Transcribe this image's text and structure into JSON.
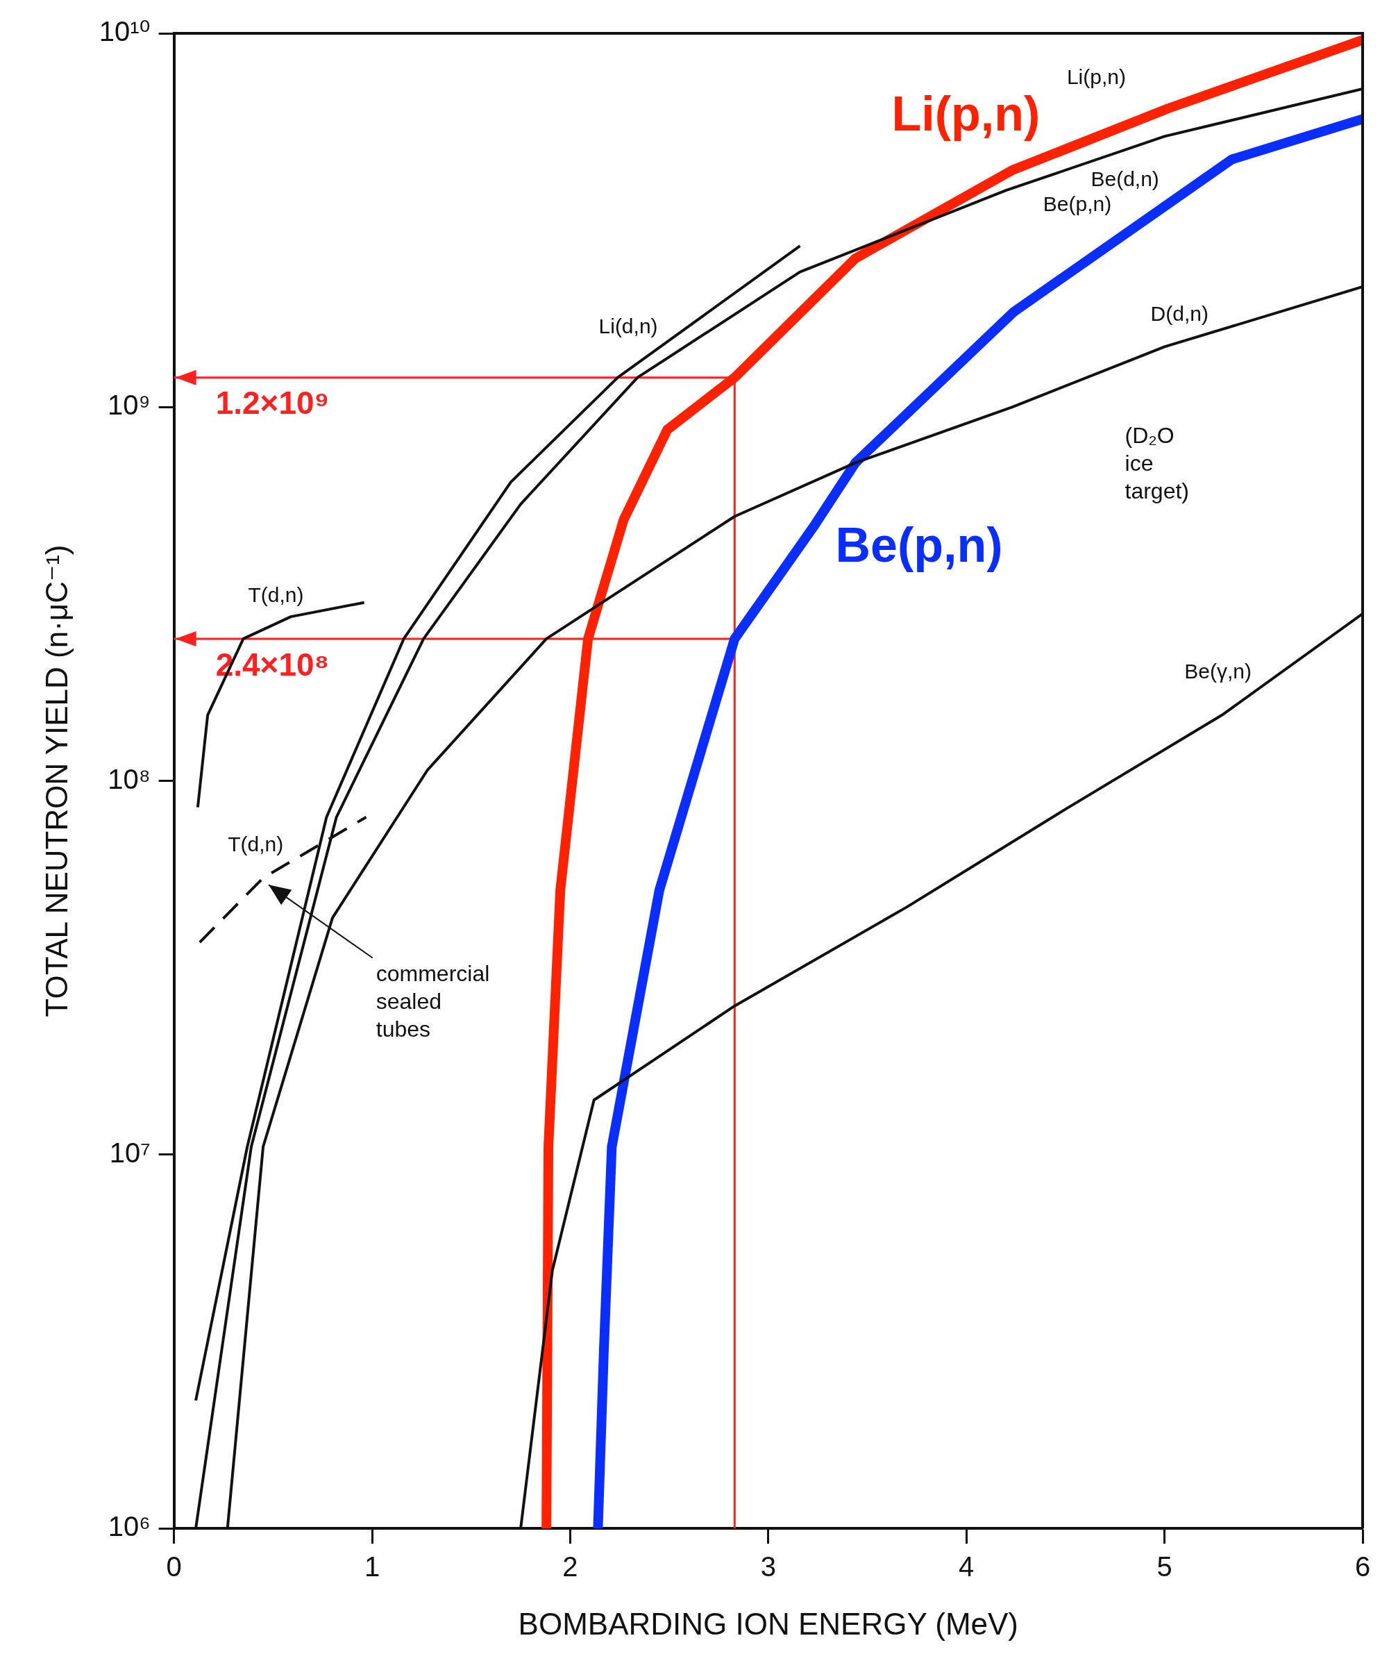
{
  "chart_data": {
    "type": "line",
    "xlabel": "BOMBARDING ION ENERGY (MeV)",
    "ylabel": "TOTAL NEUTRON YIELD (n·μC⁻¹)",
    "log": "y",
    "marker": "none",
    "grid": false,
    "legend": false,
    "xlim": [
      0,
      6
    ],
    "ylim": [
      1000000,
      10000000000
    ],
    "xticks": [
      0,
      1,
      2,
      3,
      4,
      5,
      6
    ],
    "yticks": [
      {
        "value": 1000000,
        "label": "10⁶"
      },
      {
        "value": 10000000,
        "label": "10⁷"
      },
      {
        "value": 100000000,
        "label": "10⁸"
      },
      {
        "value": 1000000000,
        "label": "10⁹"
      },
      {
        "value": 10000000000,
        "label": "10¹⁰"
      }
    ],
    "series": [
      {
        "name": "Li(d,n)",
        "color": "#111111",
        "x": [
          0.11,
          0.37,
          0.77,
          1.16,
          1.7,
          2.24,
          3.16
        ],
        "values": [
          2200000,
          10500000,
          80000000,
          240000000,
          630000000,
          1200000000,
          2700000000
        ]
      },
      {
        "name": "Be(d,n)",
        "color": "#111111",
        "x": [
          0.11,
          0.39,
          0.82,
          1.26,
          1.75,
          2.34,
          3.16,
          4.2,
          5.0,
          6
        ],
        "values": [
          1000000,
          10500000,
          80000000,
          240000000,
          550000000,
          1200000000,
          2300000000,
          3800000000,
          5300000000,
          7100000000
        ]
      },
      {
        "name": "D(d,n)",
        "color": "#111111",
        "x": [
          0.27,
          0.45,
          0.8,
          1.28,
          1.88,
          2.83,
          3.44,
          4.23,
          5.0,
          6
        ],
        "values": [
          1000000,
          10500000,
          43000000,
          107000000,
          240000000,
          510000000,
          710000000,
          1000000000,
          1450000000,
          2100000000
        ]
      },
      {
        "name": "T(d,n)",
        "color": "#111111",
        "x": [
          0.12,
          0.17,
          0.35,
          0.59,
          0.96
        ],
        "values": [
          85000000,
          150000000,
          240000000,
          275000000,
          300000000
        ]
      },
      {
        "name": "T(d,n)",
        "color": "#111111",
        "line_style": "dashed",
        "x": [
          0.13,
          0.45,
          0.97
        ],
        "values": [
          37000000,
          55000000,
          80000000
        ]
      },
      {
        "name": "Be(γ,n)",
        "color": "#111111",
        "x": [
          1.75,
          1.91,
          2.12,
          2.83,
          3.7,
          4.5,
          5.29,
          6
        ],
        "values": [
          1000000,
          4900000,
          14000000,
          25000000,
          46000000,
          84000000,
          150000000,
          280000000
        ]
      },
      {
        "name": "Li(p,n)",
        "color": "#ff2200",
        "x": [
          1.88,
          1.89,
          1.95,
          2.09,
          2.27,
          2.49,
          2.83,
          3.44,
          4.23,
          5.02,
          6
        ],
        "values": [
          1000000,
          10500000,
          51000000,
          240000000,
          500000000,
          870000000,
          1200000000,
          2500000000,
          4300000000,
          6300000000,
          9600000000
        ]
      },
      {
        "name": "Be(p,n)",
        "color": "#0a2eff",
        "x": [
          2.14,
          2.17,
          2.21,
          2.45,
          2.83,
          3.23,
          3.44,
          4.24,
          5.34,
          6
        ],
        "values": [
          1000000,
          3000000,
          10500000,
          51000000,
          240000000,
          480000000,
          710000000,
          1800000000,
          4600000000,
          5900000000
        ]
      }
    ],
    "ref_lines": [
      {
        "axis": "y",
        "value": 1200000000,
        "label": "1.2×10⁹",
        "color": "#ff2020"
      },
      {
        "axis": "y",
        "value": 240000000,
        "label": "2.4×10⁸",
        "color": "#ff2020"
      },
      {
        "axis": "x",
        "value": 2.83,
        "label": null,
        "color": "#ff2020"
      }
    ],
    "annotations": [
      "Li(p,n)",
      "Be(p,n)",
      "(D₂O ice target)",
      "commercial sealed tubes"
    ]
  }
}
